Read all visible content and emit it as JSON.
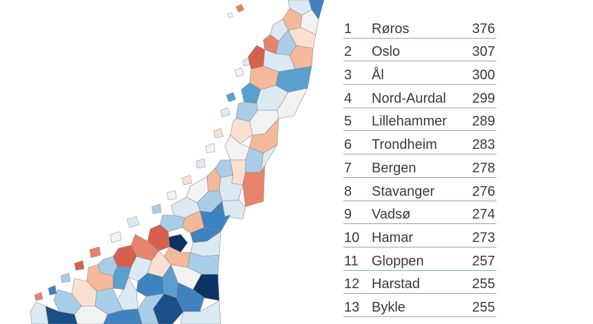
{
  "colors": {
    "deep_red": "#d6604d",
    "red": "#e8836b",
    "light_red": "#f4b89b",
    "pale_red": "#fbe0d2",
    "neutral": "#f2f2f2",
    "pale_blue": "#dbe9f3",
    "light_blue": "#a9cde6",
    "blue": "#5a9fd0",
    "mid_blue": "#3f82c0",
    "dark_blue": "#1b4f8a",
    "navy": "#0d3265",
    "border": "#8a8a8a"
  },
  "ranking": [
    {
      "rank": "1",
      "name": "Røros",
      "value": "376"
    },
    {
      "rank": "2",
      "name": "Oslo",
      "value": "307"
    },
    {
      "rank": "3",
      "name": "Ål",
      "value": "300"
    },
    {
      "rank": "4",
      "name": "Nord-Aurdal",
      "value": "299"
    },
    {
      "rank": "5",
      "name": "Lillehammer",
      "value": "289"
    },
    {
      "rank": "6",
      "name": "Trondheim",
      "value": "283"
    },
    {
      "rank": "7",
      "name": "Bergen",
      "value": "278"
    },
    {
      "rank": "8",
      "name": "Stavanger",
      "value": "276"
    },
    {
      "rank": "9",
      "name": "Vadsø",
      "value": "274"
    },
    {
      "rank": "10",
      "name": "Hamar",
      "value": "273"
    },
    {
      "rank": "11",
      "name": "Gloppen",
      "value": "257"
    },
    {
      "rank": "12",
      "name": "Harstad",
      "value": "255"
    },
    {
      "rank": "13",
      "name": "Bykle",
      "value": "255"
    }
  ]
}
